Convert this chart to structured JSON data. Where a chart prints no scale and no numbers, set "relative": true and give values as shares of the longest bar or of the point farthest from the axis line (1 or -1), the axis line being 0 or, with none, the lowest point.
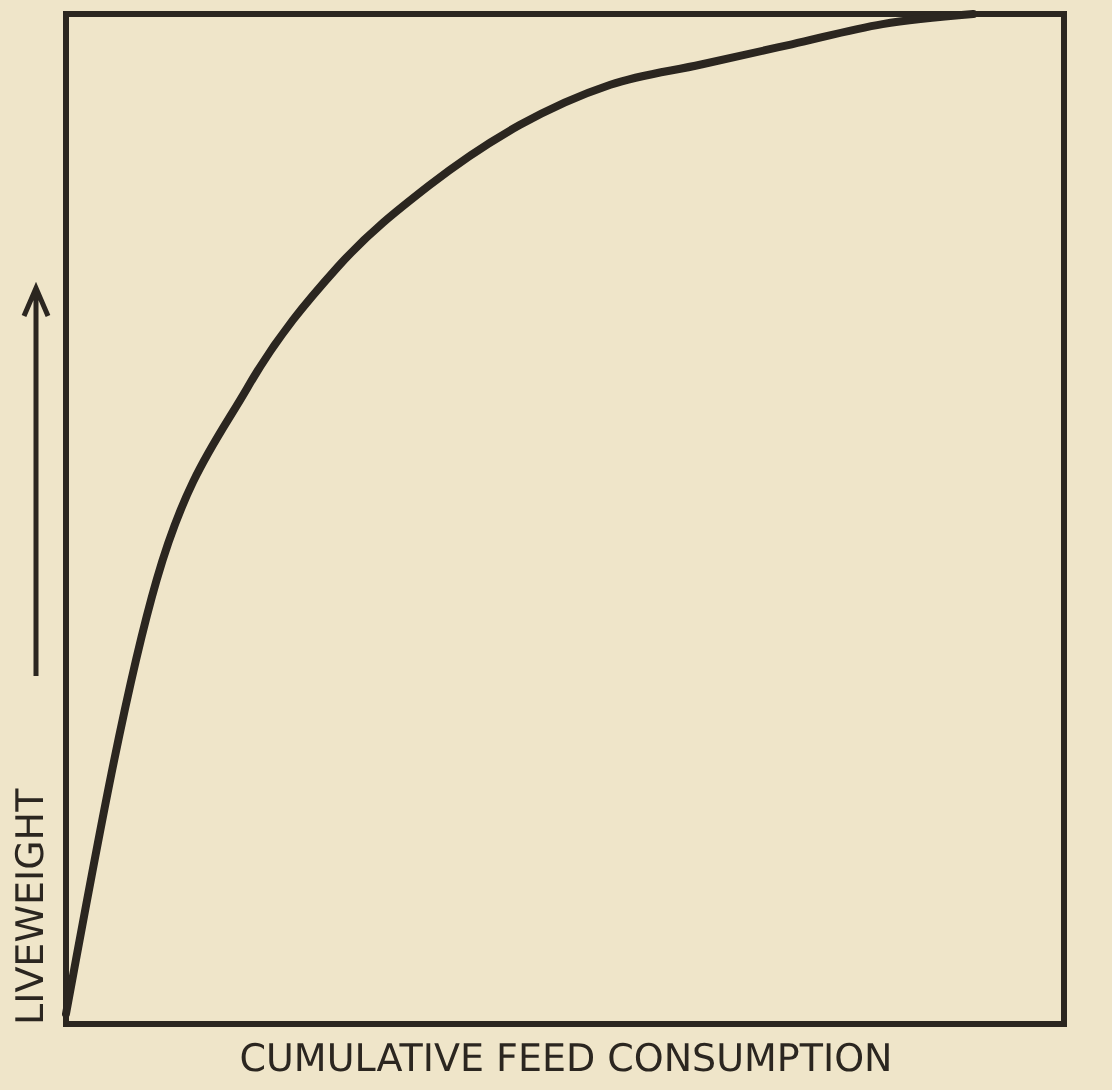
{
  "chart_data": {
    "type": "line",
    "relative": true,
    "xlabel": "CUMULATIVE FEED CONSUMPTION",
    "ylabel": "LIVEWEIGHT",
    "categories": [
      null,
      null,
      null,
      null,
      null,
      null,
      null,
      null,
      null,
      null,
      null,
      null
    ],
    "series": [
      {
        "color": "#2b2620",
        "values": [
          0.01,
          0.44,
          0.63,
          0.75,
          0.83,
          0.89,
          0.93,
          0.95,
          0.97,
          0.99,
          1.0,
          null
        ]
      }
    ],
    "grid": false,
    "marker": "none",
    "line_style": "solid"
  }
}
